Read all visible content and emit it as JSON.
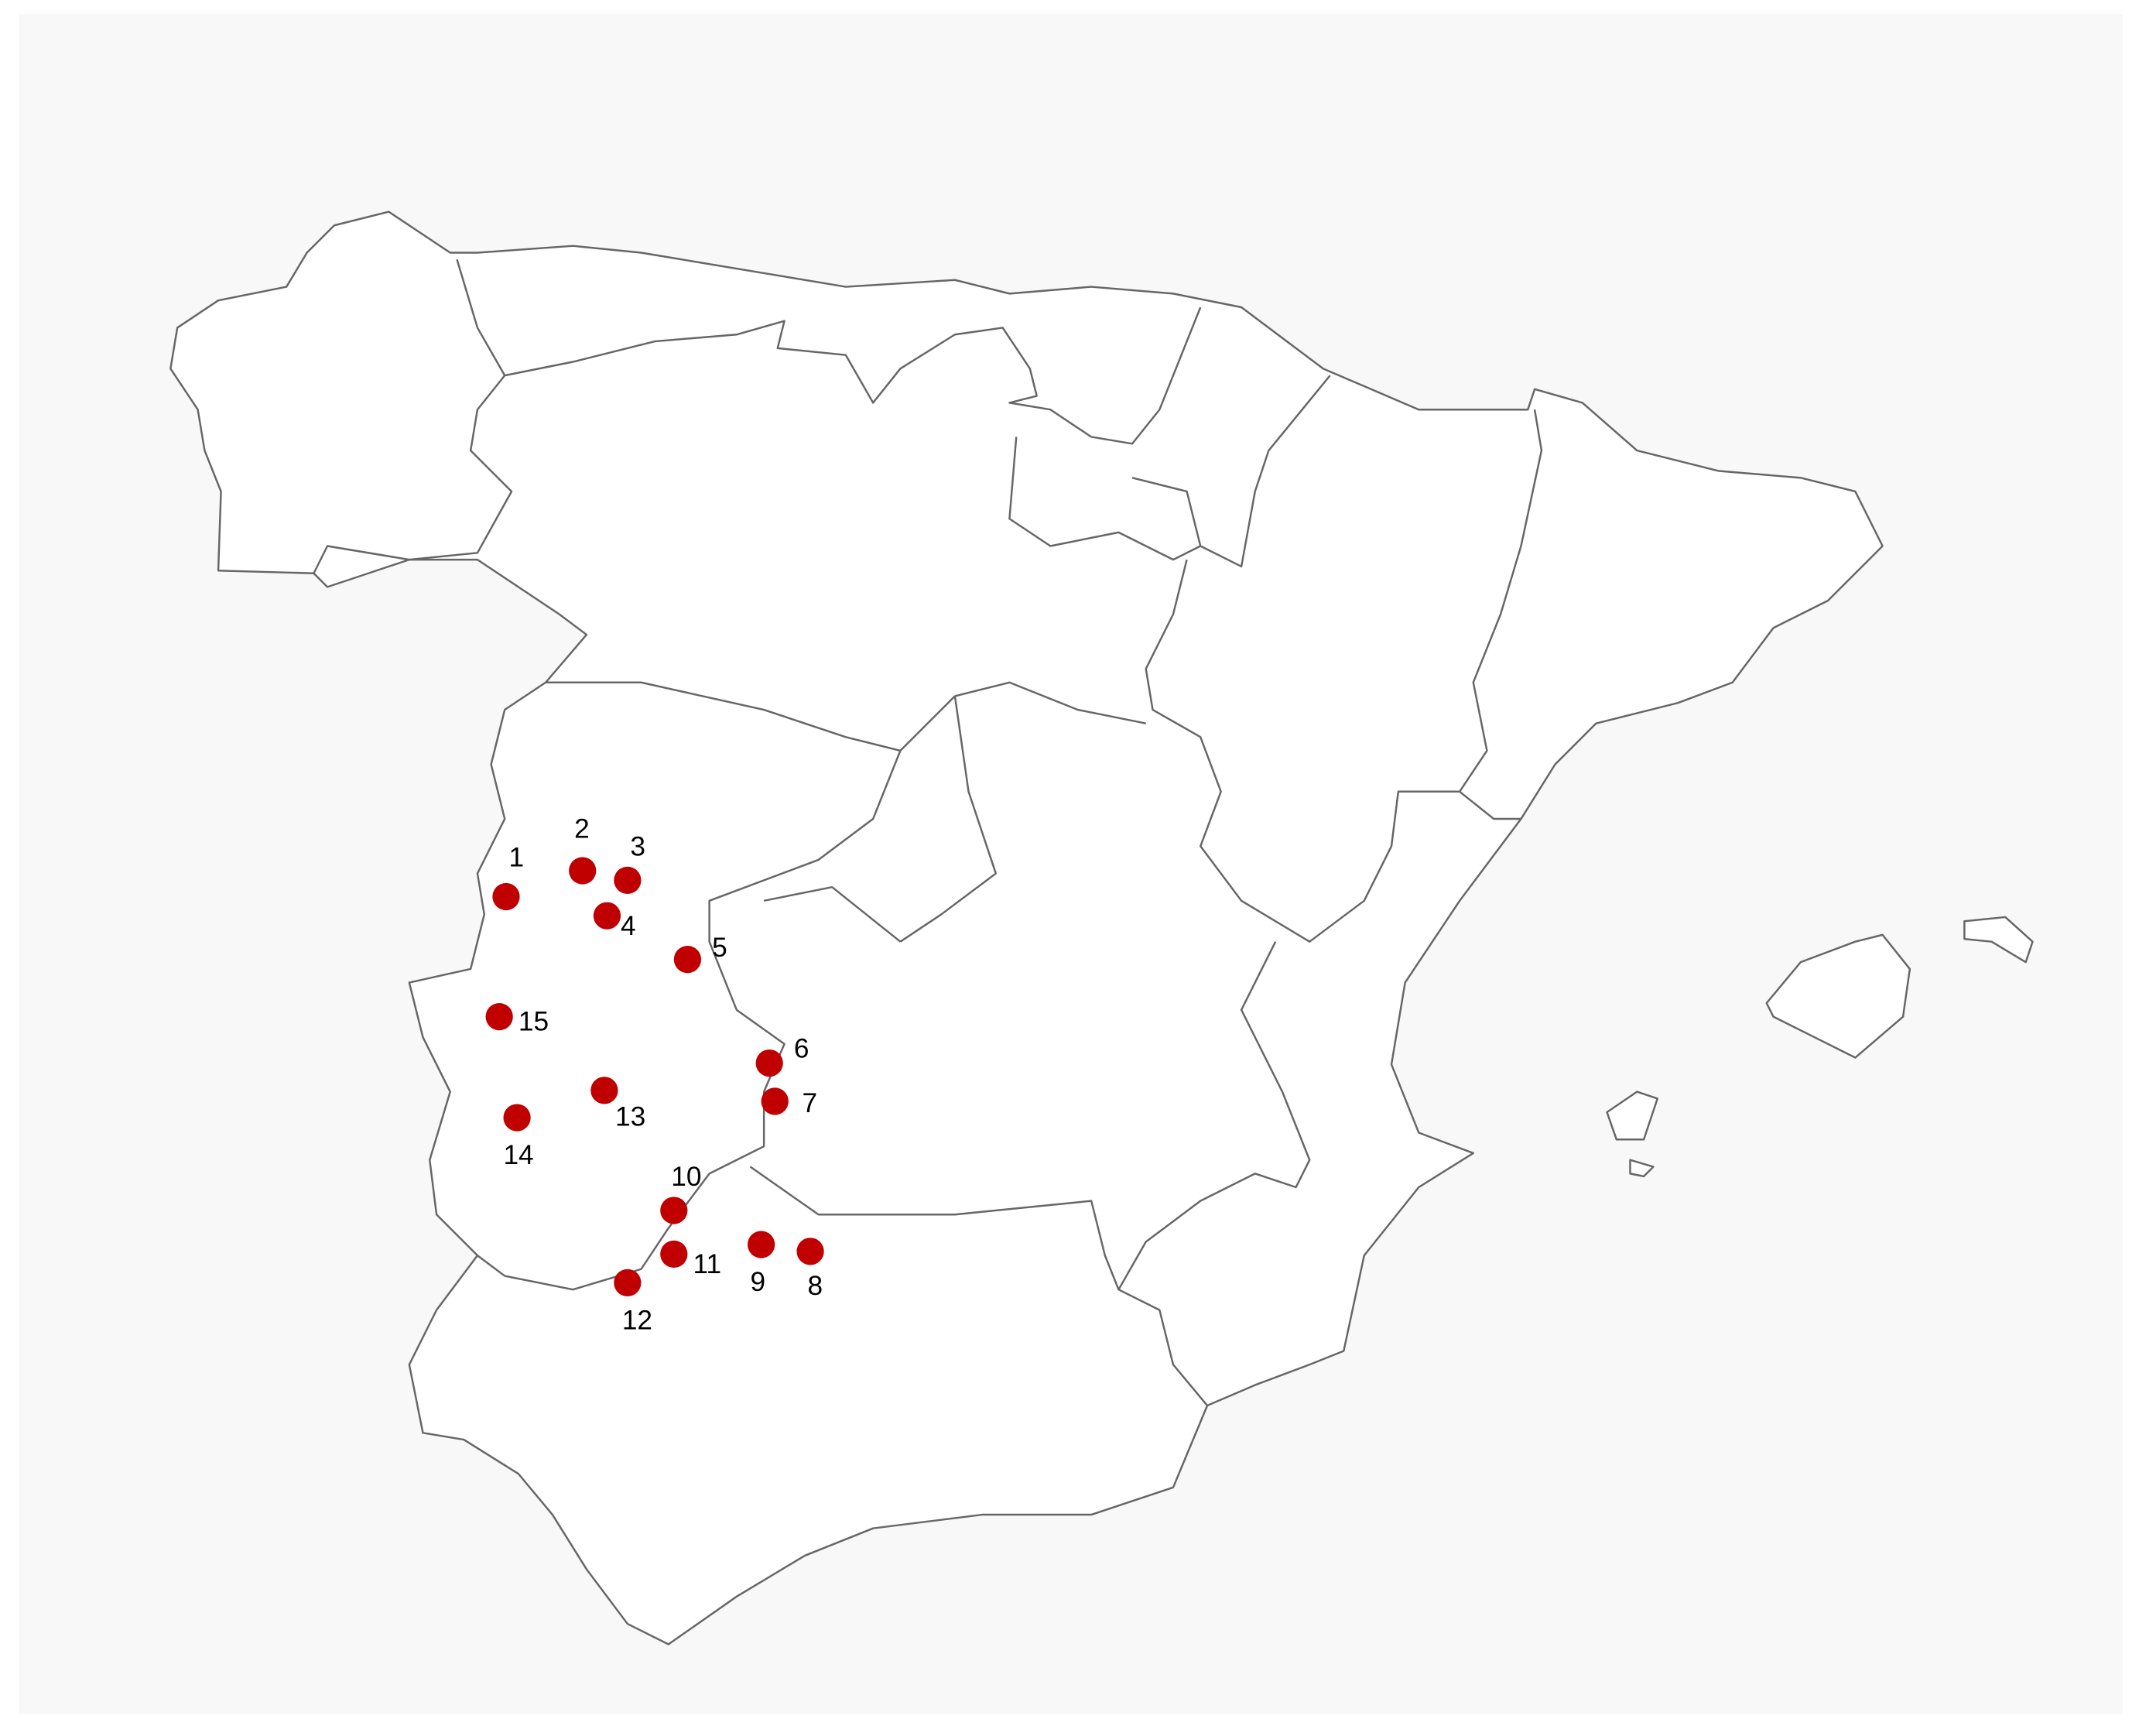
{
  "map": {
    "background_color": "#f8f8f8",
    "land_color": "#ffffff",
    "border_color": "#666666",
    "marker_color": "#c00000",
    "points": [
      {
        "label": "1"
      },
      {
        "label": "2"
      },
      {
        "label": "3"
      },
      {
        "label": "4"
      },
      {
        "label": "5"
      },
      {
        "label": "6"
      },
      {
        "label": "7"
      },
      {
        "label": "8"
      },
      {
        "label": "9"
      },
      {
        "label": "10"
      },
      {
        "label": "11"
      },
      {
        "label": "12"
      },
      {
        "label": "13"
      },
      {
        "label": "14"
      },
      {
        "label": "15"
      }
    ]
  }
}
